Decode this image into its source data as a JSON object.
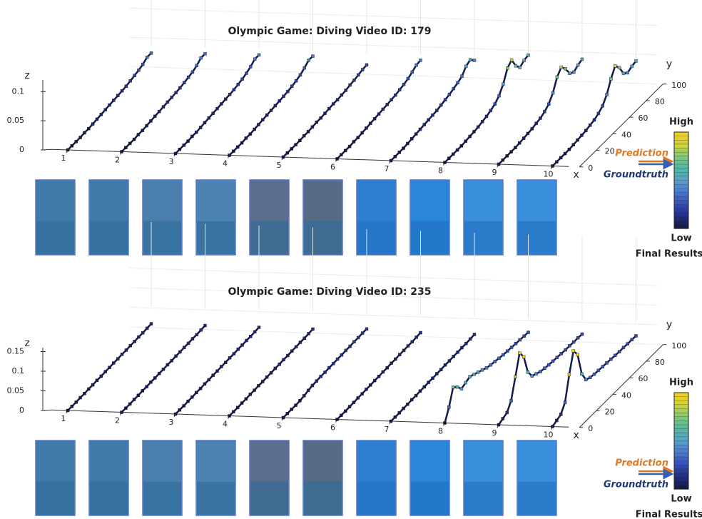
{
  "chart_data": [
    {
      "type": "line3d",
      "title": "Olympic Game: Diving  Video ID: 179",
      "xlabel": "x",
      "ylabel": "y",
      "zlabel": "z",
      "xticks": [
        1,
        2,
        3,
        4,
        5,
        6,
        7,
        8,
        9,
        10
      ],
      "ylim": [
        0,
        100
      ],
      "yticks": [
        0,
        20,
        40,
        60,
        80,
        100
      ],
      "zlim": [
        0,
        0.12
      ],
      "zticks": [
        0,
        0.05,
        0.1
      ],
      "y": [
        0,
        5,
        10,
        15,
        20,
        25,
        30,
        35,
        40,
        45,
        50,
        55,
        60,
        65,
        70,
        75,
        80,
        85,
        90,
        95,
        100
      ],
      "series": [
        {
          "values": [
            0,
            0,
            0,
            0,
            0.001,
            0.001,
            0.002,
            0.003,
            0.004,
            0.005,
            0.006,
            0.007,
            0.008,
            0.009,
            0.01,
            0.012,
            0.014,
            0.016,
            0.019,
            0.024,
            0.024
          ]
        },
        {
          "values": [
            0,
            0,
            0,
            0,
            0.001,
            0.001,
            0.002,
            0.003,
            0.004,
            0.005,
            0.006,
            0.007,
            0.008,
            0.009,
            0.01,
            0.012,
            0.014,
            0.016,
            0.02,
            0.026,
            0.026
          ]
        },
        {
          "values": [
            0,
            0,
            0,
            0,
            0.001,
            0.001,
            0.002,
            0.003,
            0.004,
            0.005,
            0.006,
            0.007,
            0.008,
            0.009,
            0.01,
            0.012,
            0.014,
            0.017,
            0.021,
            0.027,
            0.027
          ]
        },
        {
          "values": [
            0,
            0,
            0,
            0,
            0.001,
            0.001,
            0.002,
            0.003,
            0.004,
            0.005,
            0.006,
            0.007,
            0.008,
            0.009,
            0.01,
            0.012,
            0.014,
            0.017,
            0.022,
            0.028,
            0.028
          ]
        },
        {
          "values": [
            0,
            0,
            0,
            0,
            0,
            0.001,
            0.001,
            0.002,
            0.003,
            0.003,
            0.004,
            0.005,
            0.006,
            0.006,
            0.007,
            0.008,
            0.01,
            0.011,
            0.013,
            0.015,
            0.016
          ]
        },
        {
          "values": [
            0,
            0,
            0,
            0,
            0.001,
            0.001,
            0.002,
            0.003,
            0.004,
            0.005,
            0.006,
            0.007,
            0.008,
            0.009,
            0.01,
            0.012,
            0.014,
            0.017,
            0.021,
            0.026,
            0.027
          ]
        },
        {
          "values": [
            0,
            0,
            0,
            0,
            0.001,
            0.002,
            0.003,
            0.004,
            0.005,
            0.006,
            0.007,
            0.008,
            0.01,
            0.012,
            0.014,
            0.017,
            0.02,
            0.024,
            0.034,
            0.038,
            0.03
          ]
        },
        {
          "values": [
            0,
            0,
            0,
            0,
            0,
            0.001,
            0.002,
            0.003,
            0.004,
            0.006,
            0.008,
            0.011,
            0.015,
            0.022,
            0.035,
            0.055,
            0.062,
            0.045,
            0.035,
            0.04,
            0.042
          ]
        },
        {
          "values": [
            0,
            0,
            0,
            0,
            0,
            0.001,
            0.002,
            0.003,
            0.004,
            0.006,
            0.008,
            0.012,
            0.018,
            0.03,
            0.05,
            0.06,
            0.05,
            0.035,
            0.03,
            0.035,
            0.038
          ]
        },
        {
          "values": [
            0,
            0,
            0,
            0,
            0,
            0.001,
            0.002,
            0.003,
            0.004,
            0.006,
            0.008,
            0.012,
            0.018,
            0.03,
            0.05,
            0.065,
            0.055,
            0.038,
            0.032,
            0.036,
            0.038
          ]
        }
      ],
      "colormap": [
        "#141a4a",
        "#23308a",
        "#3450b8",
        "#4a7ad0",
        "#5aa0c8",
        "#4fb8a8",
        "#7cc878",
        "#c8d040",
        "#f0d020"
      ],
      "colorbar_high": "High",
      "colorbar_low": "Low",
      "prediction_label": "Prediction",
      "groundtruth_label": "Groundtruth",
      "results_label": "Final Results"
    },
    {
      "type": "line3d",
      "title": "Olympic Game: Diving  Video ID: 235",
      "xlabel": "x",
      "ylabel": "y",
      "zlabel": "z",
      "xticks": [
        1,
        2,
        3,
        4,
        5,
        6,
        7,
        8,
        9,
        10
      ],
      "ylim": [
        0,
        100
      ],
      "yticks": [
        0,
        20,
        40,
        60,
        80,
        100
      ],
      "zlim": [
        0,
        0.16
      ],
      "zticks": [
        0,
        0.05,
        0.1,
        0.15
      ],
      "y": [
        0,
        5,
        10,
        15,
        20,
        25,
        30,
        35,
        40,
        45,
        50,
        55,
        60,
        65,
        70,
        75,
        80,
        85,
        90,
        95,
        100
      ],
      "series": [
        {
          "values": [
            0,
            0,
            0,
            0.001,
            0.001,
            0.002,
            0.002,
            0.003,
            0.003,
            0.004,
            0.004,
            0.005,
            0.005,
            0.006,
            0.006,
            0.007,
            0.007,
            0.008,
            0.008,
            0.009,
            0.01
          ]
        },
        {
          "values": [
            0,
            0,
            0,
            0.001,
            0.001,
            0.002,
            0.002,
            0.003,
            0.003,
            0.004,
            0.004,
            0.005,
            0.005,
            0.006,
            0.006,
            0.007,
            0.007,
            0.008,
            0.008,
            0.009,
            0.01
          ]
        },
        {
          "values": [
            0,
            0,
            0,
            0.001,
            0.001,
            0.002,
            0.002,
            0.003,
            0.003,
            0.004,
            0.004,
            0.005,
            0.005,
            0.006,
            0.006,
            0.007,
            0.007,
            0.008,
            0.008,
            0.009,
            0.01
          ]
        },
        {
          "values": [
            0,
            0,
            0,
            0.001,
            0.001,
            0.002,
            0.002,
            0.003,
            0.003,
            0.004,
            0.004,
            0.005,
            0.005,
            0.006,
            0.006,
            0.007,
            0.007,
            0.008,
            0.008,
            0.009,
            0.01
          ]
        },
        {
          "values": [
            0,
            0,
            0,
            0,
            0.001,
            0.003,
            0.006,
            0.008,
            0.009,
            0.01,
            0.01,
            0.011,
            0.011,
            0.012,
            0.012,
            0.013,
            0.013,
            0.014,
            0.014,
            0.015,
            0.015
          ]
        },
        {
          "values": [
            0,
            0,
            0,
            0.001,
            0.001,
            0.002,
            0.002,
            0.003,
            0.003,
            0.004,
            0.004,
            0.005,
            0.005,
            0.006,
            0.006,
            0.007,
            0.007,
            0.008,
            0.008,
            0.009,
            0.01
          ]
        },
        {
          "values": [
            0,
            0,
            0,
            0.001,
            0.001,
            0.002,
            0.002,
            0.003,
            0.003,
            0.004,
            0.004,
            0.005,
            0.005,
            0.006,
            0.006,
            0.007,
            0.007,
            0.008,
            0.008,
            0.009,
            0.01
          ]
        },
        {
          "values": [
            0,
            0.03,
            0.07,
            0.06,
            0.045,
            0.05,
            0.055,
            0.05,
            0.045,
            0.04,
            0.035,
            0.032,
            0.03,
            0.028,
            0.026,
            0.025,
            0.024,
            0.023,
            0.022,
            0.021,
            0.02
          ]
        },
        {
          "values": [
            0,
            0.005,
            0.01,
            0.03,
            0.08,
            0.13,
            0.11,
            0.06,
            0.04,
            0.035,
            0.03,
            0.028,
            0.026,
            0.025,
            0.024,
            0.023,
            0.022,
            0.022,
            0.021,
            0.021,
            0.02
          ]
        },
        {
          "values": [
            0,
            0.005,
            0.01,
            0.03,
            0.09,
            0.14,
            0.12,
            0.06,
            0.035,
            0.03,
            0.028,
            0.027,
            0.026,
            0.025,
            0.024,
            0.023,
            0.022,
            0.022,
            0.021,
            0.021,
            0.02
          ]
        }
      ],
      "colormap": [
        "#141a4a",
        "#23308a",
        "#3450b8",
        "#4a7ad0",
        "#5aa0c8",
        "#4fb8a8",
        "#7cc878",
        "#c8d040",
        "#f0d020"
      ],
      "colorbar_high": "High",
      "colorbar_low": "Low",
      "prediction_label": "Prediction",
      "groundtruth_label": "Groundtruth",
      "results_label": "Final Results"
    }
  ]
}
